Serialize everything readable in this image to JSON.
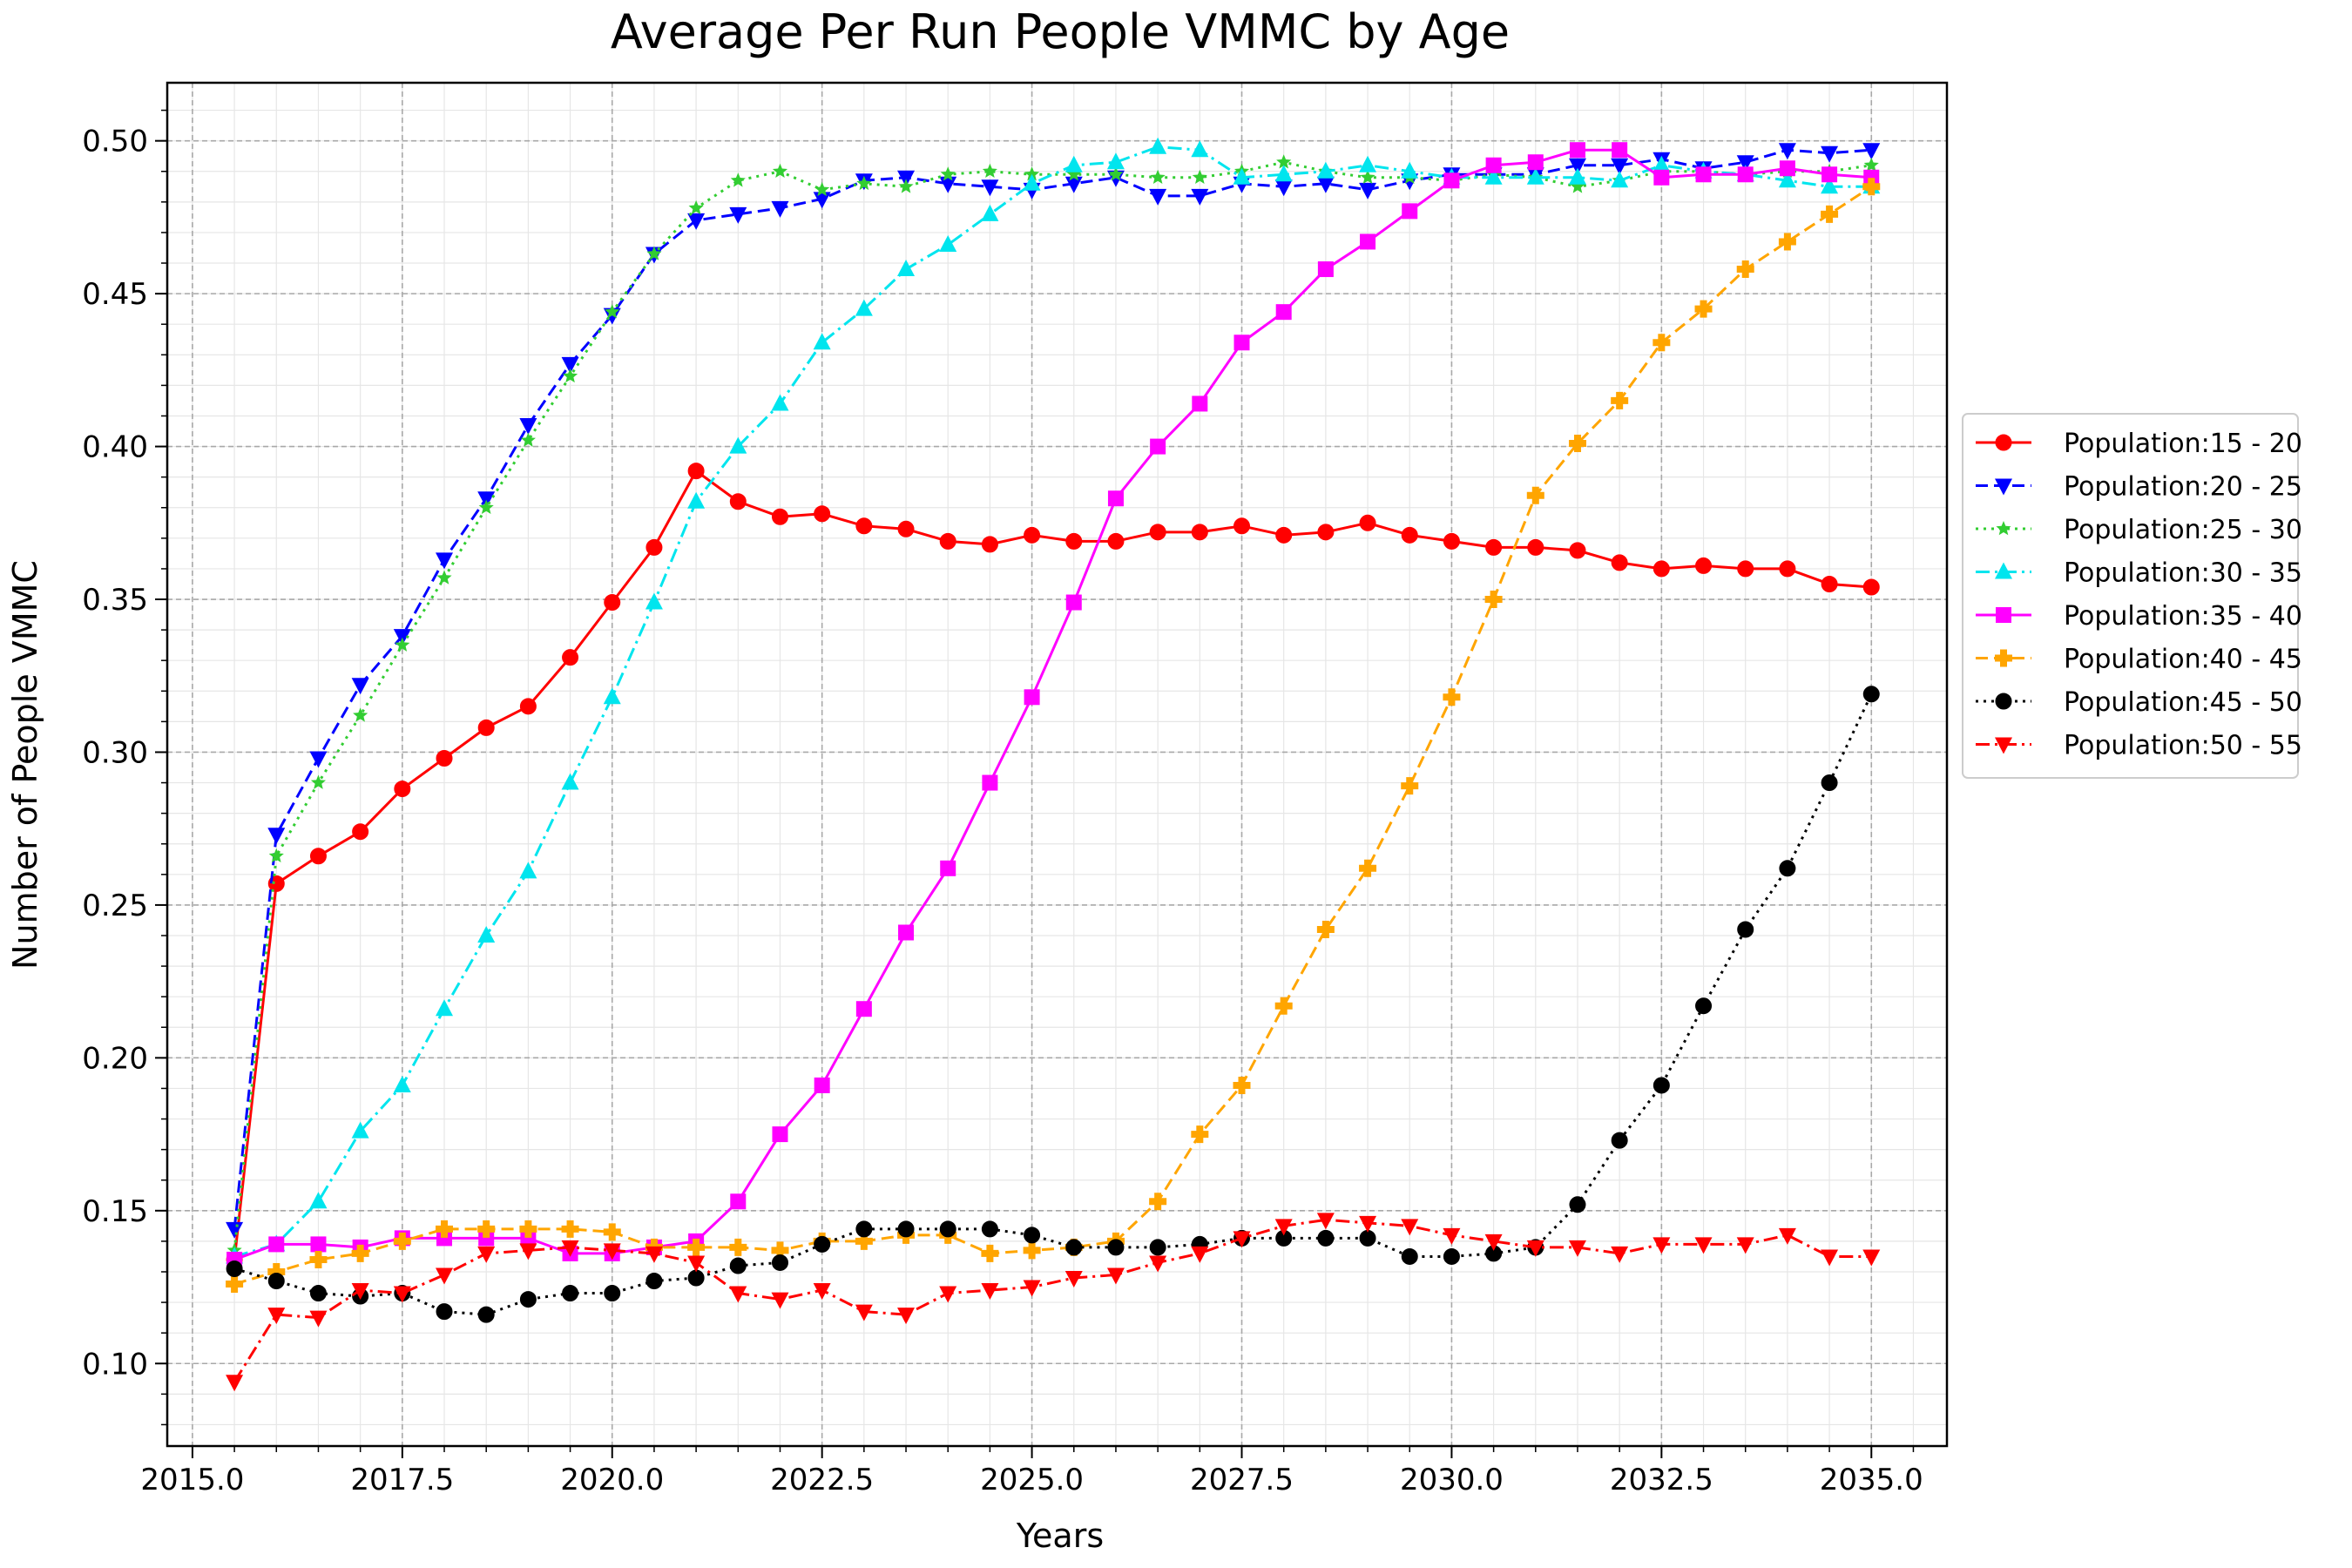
{
  "chart_data": {
    "type": "line",
    "title": "Average Per Run People VMMC by Age",
    "xlabel": "Years",
    "ylabel": "Number of People VMMC",
    "xlim": [
      2014.7,
      2035.9
    ],
    "ylim": [
      0.073,
      0.519
    ],
    "xticks": [
      "2015.0",
      "2017.5",
      "2020.0",
      "2022.5",
      "2025.0",
      "2027.5",
      "2030.0",
      "2032.5",
      "2035.0"
    ],
    "xtick_values": [
      2015.0,
      2017.5,
      2020.0,
      2022.5,
      2025.0,
      2027.5,
      2030.0,
      2032.5,
      2035.0
    ],
    "yticks": [
      "0.10",
      "0.15",
      "0.20",
      "0.25",
      "0.30",
      "0.35",
      "0.40",
      "0.45",
      "0.50"
    ],
    "ytick_values": [
      0.1,
      0.15,
      0.2,
      0.25,
      0.3,
      0.35,
      0.4,
      0.45,
      0.5
    ],
    "grid": true,
    "legend_position": "right",
    "x": [
      2015.5,
      2016.0,
      2016.5,
      2017.0,
      2017.5,
      2018.0,
      2018.5,
      2019.0,
      2019.5,
      2020.0,
      2020.5,
      2021.0,
      2021.5,
      2022.0,
      2022.5,
      2023.0,
      2023.5,
      2024.0,
      2024.5,
      2025.0,
      2025.5,
      2026.0,
      2026.5,
      2027.0,
      2027.5,
      2028.0,
      2028.5,
      2029.0,
      2029.5,
      2030.0,
      2030.5,
      2031.0,
      2031.5,
      2032.0,
      2032.5,
      2033.0,
      2033.5,
      2034.0,
      2034.5,
      2035.0
    ],
    "series": [
      {
        "name": "Population:15 - 20",
        "color": "#ff0000",
        "marker": "circle",
        "dash": "solid",
        "values": [
          0.134,
          0.257,
          0.266,
          0.274,
          0.288,
          0.298,
          0.308,
          0.315,
          0.331,
          0.349,
          0.367,
          0.392,
          0.382,
          0.377,
          0.378,
          0.374,
          0.373,
          0.369,
          0.368,
          0.371,
          0.369,
          0.369,
          0.372,
          0.372,
          0.374,
          0.371,
          0.372,
          0.375,
          0.371,
          0.369,
          0.367,
          0.367,
          0.366,
          0.362,
          0.36,
          0.361,
          0.36,
          0.36,
          0.355,
          0.354
        ]
      },
      {
        "name": "Population:20 - 25",
        "color": "#0000ff",
        "marker": "triangle-down",
        "dash": "dashed",
        "values": [
          0.144,
          0.273,
          0.298,
          0.322,
          0.338,
          0.363,
          0.383,
          0.407,
          0.427,
          0.443,
          0.463,
          0.474,
          0.476,
          0.478,
          0.481,
          0.487,
          0.488,
          0.486,
          0.485,
          0.484,
          0.486,
          0.488,
          0.482,
          0.482,
          0.486,
          0.485,
          0.486,
          0.484,
          0.487,
          0.489,
          0.489,
          0.489,
          0.492,
          0.492,
          0.494,
          0.491,
          0.493,
          0.497,
          0.496,
          0.497
        ]
      },
      {
        "name": "Population:25 - 30",
        "color": "#32cd32",
        "marker": "star",
        "dash": "dotted",
        "values": [
          0.137,
          0.266,
          0.29,
          0.312,
          0.335,
          0.357,
          0.38,
          0.402,
          0.423,
          0.444,
          0.463,
          0.478,
          0.487,
          0.49,
          0.484,
          0.486,
          0.485,
          0.489,
          0.49,
          0.489,
          0.489,
          0.489,
          0.488,
          0.488,
          0.49,
          0.493,
          0.49,
          0.488,
          0.488,
          0.487,
          0.489,
          0.488,
          0.485,
          0.487,
          0.49,
          0.49,
          0.489,
          0.49,
          0.49,
          0.492
        ]
      },
      {
        "name": "Population:30 - 35",
        "color": "#00e5ee",
        "marker": "triangle-up",
        "dash": "dashdot",
        "values": [
          0.135,
          0.139,
          0.153,
          0.176,
          0.191,
          0.216,
          0.24,
          0.261,
          0.29,
          0.318,
          0.349,
          0.382,
          0.4,
          0.414,
          0.434,
          0.445,
          0.458,
          0.466,
          0.476,
          0.486,
          0.492,
          0.493,
          0.498,
          0.497,
          0.488,
          0.489,
          0.49,
          0.492,
          0.49,
          0.488,
          0.488,
          0.488,
          0.488,
          0.487,
          0.492,
          0.49,
          0.489,
          0.487,
          0.485,
          0.485
        ]
      },
      {
        "name": "Population:35 - 40",
        "color": "#ff00ff",
        "marker": "square",
        "dash": "solid",
        "values": [
          0.134,
          0.139,
          0.139,
          0.138,
          0.141,
          0.141,
          0.141,
          0.141,
          0.136,
          0.136,
          0.138,
          0.14,
          0.153,
          0.175,
          0.191,
          0.216,
          0.241,
          0.262,
          0.29,
          0.318,
          0.349,
          0.383,
          0.4,
          0.414,
          0.434,
          0.444,
          0.458,
          0.467,
          0.477,
          0.487,
          0.492,
          0.493,
          0.497,
          0.497,
          0.488,
          0.489,
          0.489,
          0.491,
          0.489,
          0.488
        ]
      },
      {
        "name": "Population:40 - 45",
        "color": "#ffa500",
        "marker": "plus",
        "dash": "dashed",
        "values": [
          0.126,
          0.13,
          0.134,
          0.136,
          0.14,
          0.144,
          0.144,
          0.144,
          0.144,
          0.143,
          0.138,
          0.138,
          0.138,
          0.137,
          0.14,
          0.14,
          0.142,
          0.142,
          0.136,
          0.137,
          0.138,
          0.14,
          0.153,
          0.175,
          0.191,
          0.217,
          0.242,
          0.262,
          0.289,
          0.318,
          0.35,
          0.384,
          0.401,
          0.415,
          0.434,
          0.445,
          0.458,
          0.467,
          0.476,
          0.485
        ]
      },
      {
        "name": "Population:45 - 50",
        "color": "#000000",
        "marker": "circle",
        "dash": "dotted",
        "values": [
          0.131,
          0.127,
          0.123,
          0.122,
          0.123,
          0.117,
          0.116,
          0.121,
          0.123,
          0.123,
          0.127,
          0.128,
          0.132,
          0.133,
          0.139,
          0.144,
          0.144,
          0.144,
          0.144,
          0.142,
          0.138,
          0.138,
          0.138,
          0.139,
          0.141,
          0.141,
          0.141,
          0.141,
          0.135,
          0.135,
          0.136,
          0.138,
          0.152,
          0.173,
          0.191,
          0.217,
          0.242,
          0.262,
          0.29,
          0.319
        ]
      },
      {
        "name": "Population:50 - 55",
        "color": "#ff0000",
        "marker": "triangle-down",
        "dash": "dashdot",
        "values": [
          0.094,
          0.116,
          0.115,
          0.124,
          0.123,
          0.129,
          0.136,
          0.137,
          0.138,
          0.137,
          0.136,
          0.133,
          0.123,
          0.121,
          0.124,
          0.117,
          0.116,
          0.123,
          0.124,
          0.125,
          0.128,
          0.129,
          0.133,
          0.136,
          0.141,
          0.145,
          0.147,
          0.146,
          0.145,
          0.142,
          0.14,
          0.138,
          0.138,
          0.136,
          0.139,
          0.139,
          0.139,
          0.142,
          0.135,
          0.135
        ]
      }
    ]
  }
}
